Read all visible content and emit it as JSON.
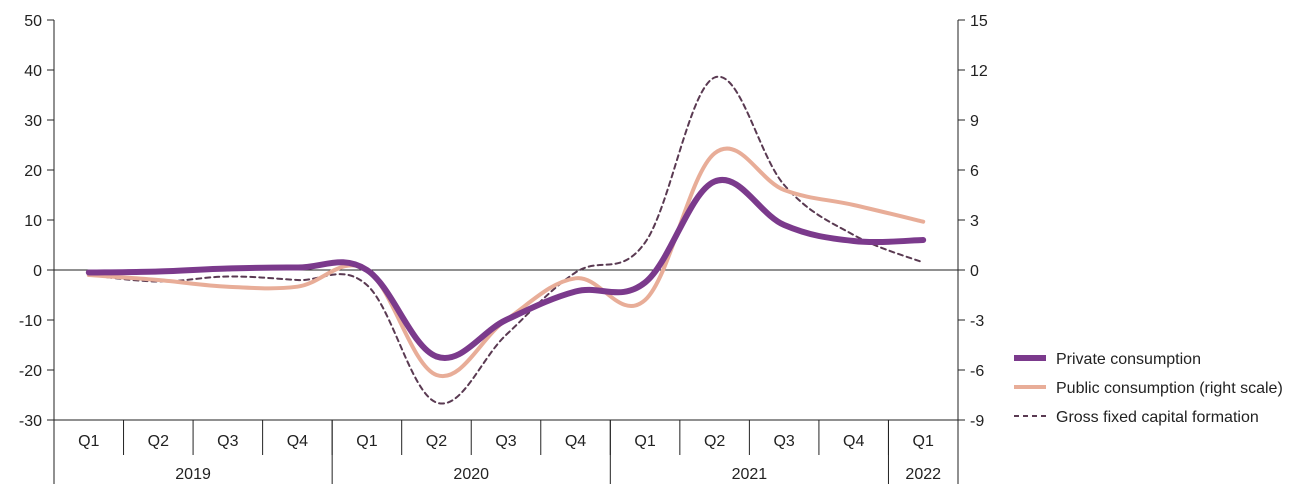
{
  "chart_data": {
    "type": "line",
    "title": "",
    "xlabel": "",
    "ylabel": "",
    "y2label": "",
    "ylim": [
      -30,
      50
    ],
    "y2lim": [
      -9,
      15
    ],
    "yticks": [
      50,
      40,
      30,
      20,
      10,
      0,
      -10,
      -20,
      -30
    ],
    "yticks_labels": [
      "50",
      "40",
      "30",
      "20",
      "10",
      "0",
      "-10",
      "-20",
      "-30"
    ],
    "y2ticks": [
      15,
      12,
      9,
      6,
      3,
      0,
      -3,
      -6,
      -9
    ],
    "y2ticks_labels": [
      "15",
      "12",
      "9",
      "6",
      "3",
      "0",
      "-3",
      "-6",
      "-9"
    ],
    "categories": [
      "Q1",
      "Q2",
      "Q3",
      "Q4",
      "Q1",
      "Q2",
      "Q3",
      "Q4",
      "Q1",
      "Q2",
      "Q3",
      "Q4",
      "Q1"
    ],
    "year_groups": [
      {
        "label": "2019",
        "count": 4
      },
      {
        "label": "2020",
        "count": 4
      },
      {
        "label": "2021",
        "count": 4
      },
      {
        "label": "2022",
        "count": 1
      }
    ],
    "grid": false,
    "legend_position": "right",
    "series": [
      {
        "name": "Private consumption",
        "axis": "left",
        "style": "solid-thick",
        "color": "#7b3a8c",
        "values": [
          -0.5,
          -0.3,
          0.3,
          0.5,
          0.0,
          -17.3,
          -10.0,
          -4.3,
          -2.5,
          17.7,
          9.0,
          5.8,
          6.0
        ]
      },
      {
        "name": "Public consumption (right scale)",
        "axis": "right",
        "style": "solid",
        "color": "#e8ad98",
        "values": [
          -0.3,
          -0.6,
          -1.0,
          -1.0,
          0.0,
          -6.3,
          -3.0,
          -0.5,
          -1.8,
          7.0,
          4.8,
          3.9,
          2.9
        ]
      },
      {
        "name": "Gross fixed capital formation",
        "axis": "left",
        "style": "dashed",
        "color": "#5a3a52",
        "values": [
          -1.0,
          -2.3,
          -1.3,
          -2.0,
          -3.0,
          -26.5,
          -13.0,
          -0.5,
          5.5,
          38.5,
          17.0,
          7.0,
          1.5
        ]
      }
    ]
  }
}
